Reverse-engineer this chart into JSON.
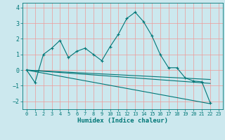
{
  "xlabel": "Humidex (Indice chaleur)",
  "bg_color": "#cce8ee",
  "grid_color": "#ee9999",
  "line_color": "#007777",
  "xlim": [
    -0.5,
    23.5
  ],
  "ylim": [
    -2.5,
    4.3
  ],
  "yticks": [
    -2,
    -1,
    0,
    1,
    2,
    3,
    4
  ],
  "xticks": [
    0,
    1,
    2,
    3,
    4,
    5,
    6,
    7,
    8,
    9,
    10,
    11,
    12,
    13,
    14,
    15,
    16,
    17,
    18,
    19,
    20,
    21,
    22,
    23
  ],
  "zigzag_x": [
    0,
    1,
    2,
    3,
    4,
    5,
    6,
    7,
    8,
    9,
    10,
    11,
    12,
    13,
    14,
    15,
    16,
    17,
    18,
    19,
    20,
    21,
    22
  ],
  "zigzag_y": [
    0.0,
    -0.8,
    1.0,
    1.4,
    1.9,
    0.8,
    1.2,
    1.4,
    1.0,
    0.6,
    1.5,
    2.3,
    3.3,
    3.7,
    3.1,
    2.2,
    1.0,
    0.15,
    0.15,
    -0.5,
    -0.7,
    -0.75,
    -2.1
  ],
  "line1": [
    [
      0,
      22
    ],
    [
      0.0,
      -2.15
    ]
  ],
  "line2": [
    [
      0,
      22
    ],
    [
      0.0,
      -0.85
    ]
  ],
  "line3": [
    [
      0,
      22
    ],
    [
      0.0,
      -0.6
    ]
  ]
}
